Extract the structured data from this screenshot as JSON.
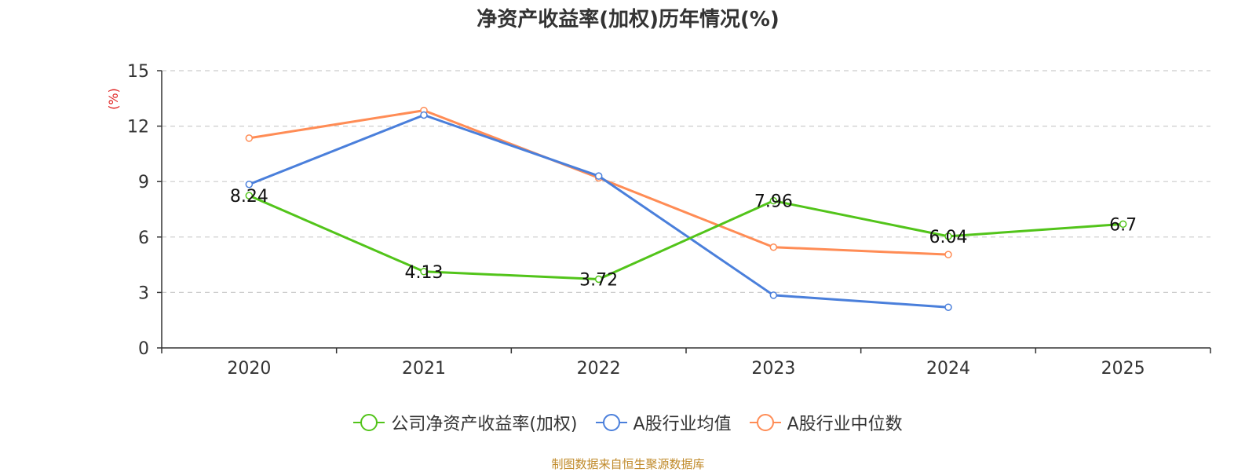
{
  "chart_data": {
    "type": "line",
    "title": "净资产收益率(加权)历年情况(%)",
    "ylabel": "(%)",
    "xlabel": "",
    "categories": [
      "2020",
      "2021",
      "2022",
      "2023",
      "2024",
      "2025"
    ],
    "ylim": [
      0,
      15
    ],
    "yticks": [
      0,
      3,
      6,
      9,
      12,
      15
    ],
    "grid": true,
    "legend_position": "bottom",
    "series": [
      {
        "name": "公司净资产收益率(加权)",
        "color": "#52c41a",
        "values": [
          8.24,
          4.13,
          3.72,
          7.96,
          6.04,
          6.7
        ],
        "labels": [
          "8.24",
          "4.13",
          "3.72",
          "7.96",
          "6.04",
          "6.7"
        ]
      },
      {
        "name": "A股行业均值",
        "color": "#4a7fdb",
        "values": [
          8.85,
          12.6,
          9.3,
          2.85,
          2.2,
          null
        ]
      },
      {
        "name": "A股行业中位数",
        "color": "#ff8c55",
        "values": [
          11.35,
          12.85,
          9.2,
          5.45,
          5.05,
          null
        ]
      }
    ],
    "source": "制图数据来自恒生聚源数据库"
  }
}
